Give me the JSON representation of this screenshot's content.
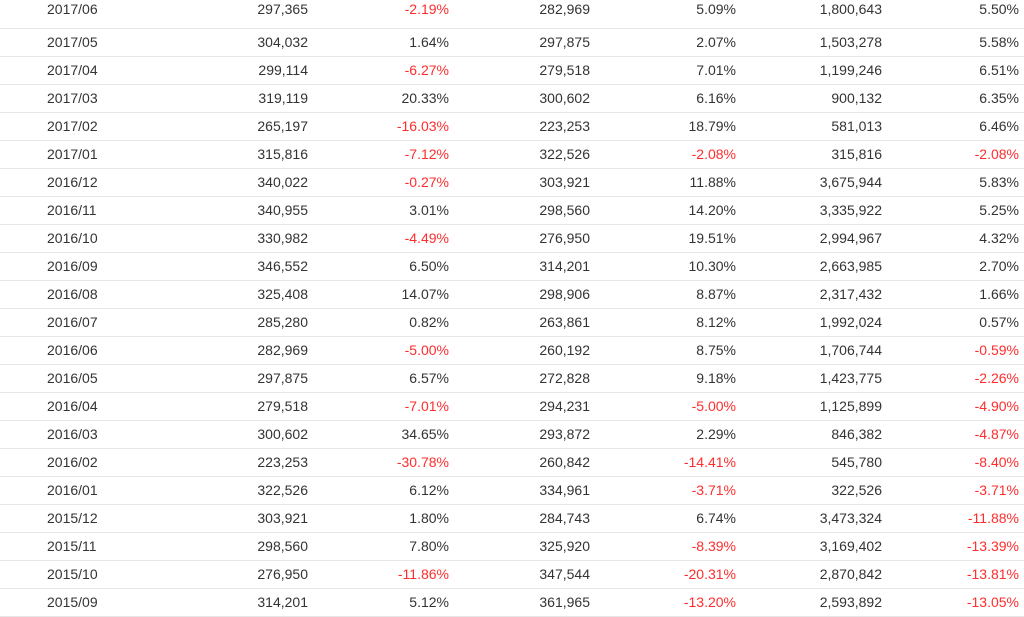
{
  "colors": {
    "negative": "#ff2d2d",
    "text": "#333333",
    "divider": "#e6e6e6"
  },
  "table": {
    "rows": [
      [
        "2017/06",
        "297,365",
        "-2.19%",
        "282,969",
        "5.09%",
        "1,800,643",
        "5.50%"
      ],
      [
        "2017/05",
        "304,032",
        "1.64%",
        "297,875",
        "2.07%",
        "1,503,278",
        "5.58%"
      ],
      [
        "2017/04",
        "299,114",
        "-6.27%",
        "279,518",
        "7.01%",
        "1,199,246",
        "6.51%"
      ],
      [
        "2017/03",
        "319,119",
        "20.33%",
        "300,602",
        "6.16%",
        "900,132",
        "6.35%"
      ],
      [
        "2017/02",
        "265,197",
        "-16.03%",
        "223,253",
        "18.79%",
        "581,013",
        "6.46%"
      ],
      [
        "2017/01",
        "315,816",
        "-7.12%",
        "322,526",
        "-2.08%",
        "315,816",
        "-2.08%"
      ],
      [
        "2016/12",
        "340,022",
        "-0.27%",
        "303,921",
        "11.88%",
        "3,675,944",
        "5.83%"
      ],
      [
        "2016/11",
        "340,955",
        "3.01%",
        "298,560",
        "14.20%",
        "3,335,922",
        "5.25%"
      ],
      [
        "2016/10",
        "330,982",
        "-4.49%",
        "276,950",
        "19.51%",
        "2,994,967",
        "4.32%"
      ],
      [
        "2016/09",
        "346,552",
        "6.50%",
        "314,201",
        "10.30%",
        "2,663,985",
        "2.70%"
      ],
      [
        "2016/08",
        "325,408",
        "14.07%",
        "298,906",
        "8.87%",
        "2,317,432",
        "1.66%"
      ],
      [
        "2016/07",
        "285,280",
        "0.82%",
        "263,861",
        "8.12%",
        "1,992,024",
        "0.57%"
      ],
      [
        "2016/06",
        "282,969",
        "-5.00%",
        "260,192",
        "8.75%",
        "1,706,744",
        "-0.59%"
      ],
      [
        "2016/05",
        "297,875",
        "6.57%",
        "272,828",
        "9.18%",
        "1,423,775",
        "-2.26%"
      ],
      [
        "2016/04",
        "279,518",
        "-7.01%",
        "294,231",
        "-5.00%",
        "1,125,899",
        "-4.90%"
      ],
      [
        "2016/03",
        "300,602",
        "34.65%",
        "293,872",
        "2.29%",
        "846,382",
        "-4.87%"
      ],
      [
        "2016/02",
        "223,253",
        "-30.78%",
        "260,842",
        "-14.41%",
        "545,780",
        "-8.40%"
      ],
      [
        "2016/01",
        "322,526",
        "6.12%",
        "334,961",
        "-3.71%",
        "322,526",
        "-3.71%"
      ],
      [
        "2015/12",
        "303,921",
        "1.80%",
        "284,743",
        "6.74%",
        "3,473,324",
        "-11.88%"
      ],
      [
        "2015/11",
        "298,560",
        "7.80%",
        "325,920",
        "-8.39%",
        "3,169,402",
        "-13.39%"
      ],
      [
        "2015/10",
        "276,950",
        "-11.86%",
        "347,544",
        "-20.31%",
        "2,870,842",
        "-13.81%"
      ],
      [
        "2015/09",
        "314,201",
        "5.12%",
        "361,965",
        "-13.20%",
        "2,593,892",
        "-13.05%"
      ]
    ]
  }
}
